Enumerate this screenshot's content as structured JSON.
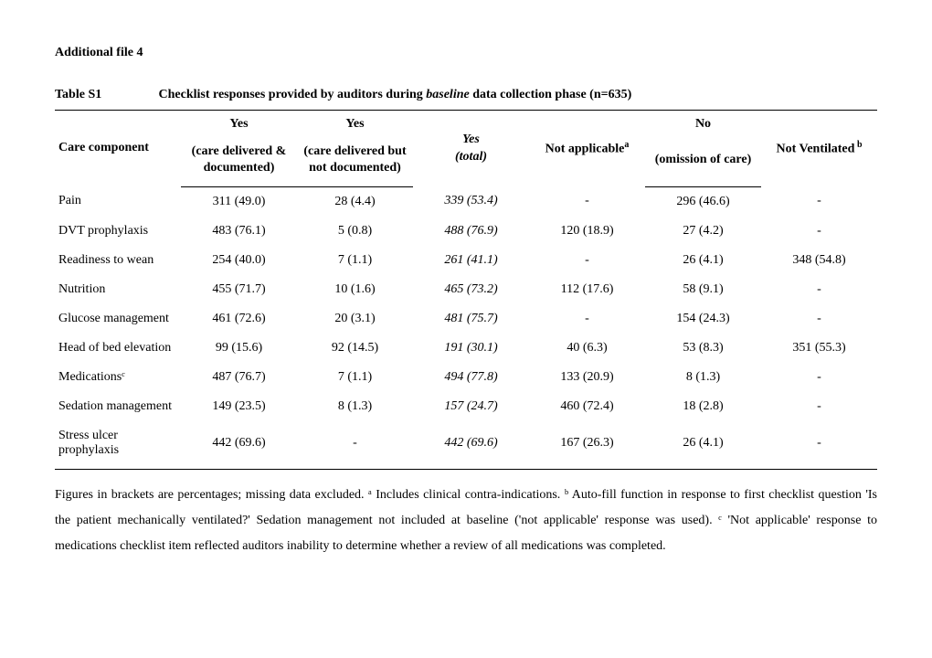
{
  "heading": "Additional file 4",
  "caption": {
    "label": "Table S1",
    "desc_pre": "Checklist responses provided by auditors during ",
    "desc_italic": "baseline",
    "desc_post": " data collection phase (n=635)"
  },
  "columns": {
    "c0": "Care component",
    "c1_top": "Yes",
    "c1_sub": "(care delivered & documented)",
    "c2_top": "Yes",
    "c2_sub": "(care delivered but not documented)",
    "c3_top": "Yes",
    "c3_sub": "(total)",
    "c4": "Not applicable",
    "c4_sup": "a",
    "c5_top": "No",
    "c5_sub": "(omission of care)",
    "c6": "Not Ventilated",
    "c6_sup": " b"
  },
  "rows": [
    {
      "name": "Pain",
      "c1": "311 (49.0)",
      "c2": "28 (4.4)",
      "c3": "339 (53.4)",
      "c4": "-",
      "c5": "296 (46.6)",
      "c6": "-"
    },
    {
      "name": "DVT prophylaxis",
      "c1": "483 (76.1)",
      "c2": "5 (0.8)",
      "c3": "488 (76.9)",
      "c4": "120 (18.9)",
      "c5": "27 (4.2)",
      "c6": "-"
    },
    {
      "name": "Readiness to wean",
      "c1": "254 (40.0)",
      "c2": "7 (1.1)",
      "c3": "261 (41.1)",
      "c4": "-",
      "c5": "26 (4.1)",
      "c6": "348 (54.8)"
    },
    {
      "name": "Nutrition",
      "c1": "455 (71.7)",
      "c2": "10 (1.6)",
      "c3": "465 (73.2)",
      "c4": "112 (17.6)",
      "c5": "58 (9.1)",
      "c6": "-"
    },
    {
      "name": "Glucose management",
      "c1": "461 (72.6)",
      "c2": "20 (3.1)",
      "c3": "481 (75.7)",
      "c4": "-",
      "c5": "154 (24.3)",
      "c6": "-"
    },
    {
      "name": "Head of bed elevation",
      "c1": "99 (15.6)",
      "c2": "92 (14.5)",
      "c3": "191 (30.1)",
      "c4": "40 (6.3)",
      "c5": "53 (8.3)",
      "c6": "351 (55.3)"
    },
    {
      "name": "Medicationsᶜ",
      "c1": "487 (76.7)",
      "c2": "7 (1.1)",
      "c3": "494 (77.8)",
      "c4": "133 (20.9)",
      "c5": "8 (1.3)",
      "c6": "-"
    },
    {
      "name": "Sedation management",
      "c1": "149 (23.5)",
      "c2": "8 (1.3)",
      "c3": "157 (24.7)",
      "c4": "460 (72.4)",
      "c5": "18 (2.8)",
      "c6": "-"
    },
    {
      "name": "Stress ulcer prophylaxis",
      "c1": "442 (69.6)",
      "c2": "-",
      "c3": "442 (69.6)",
      "c4": "167 (26.3)",
      "c5": "26 (4.1)",
      "c6": "-"
    }
  ],
  "footnote": "Figures in brackets are percentages; missing data excluded.  ᵃ Includes clinical contra-indications.  ᵇ Auto-fill function in response to first checklist question 'Is the patient mechanically ventilated?' Sedation management not included at baseline ('not applicable' response was used).  ᶜ 'Not applicable' response to medications checklist item reflected auditors inability to determine whether a review of all medications was completed."
}
